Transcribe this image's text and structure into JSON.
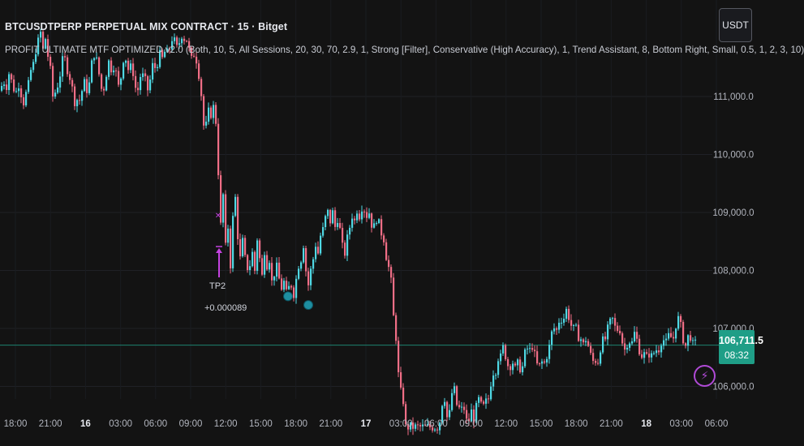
{
  "header": {
    "title": "BTCUSDTPERP PERPETUAL MIX CONTRACT · 15 · Bitget",
    "indicator": "PROFIT ULTIMATE MTF OPTIMIZED v2.0 (Both, 10, 5, All Sessions, 20, 30, 70, 2.9, 1, Strong [Filter], Conservative (High Accuracy), 1, Trend Assistant, 8, Bottom Right, Small, 0.5, 1, 2, 3, 10)"
  },
  "currency_button": "USDT",
  "price_badge": {
    "price": "106,711.5",
    "countdown": "08:32"
  },
  "annotation": {
    "label": "TP2",
    "value": "+0.000089"
  },
  "colors": {
    "bg": "#131313",
    "up": "#4fd8e4",
    "down": "#f06e86",
    "current": "#1f9e87",
    "signal": "#c443e0",
    "dot": "#1e8ea0"
  },
  "icons": {
    "alert": "lightning-icon"
  },
  "chart_data": {
    "type": "candlestick",
    "y_axis": {
      "ticks": [
        106000,
        107000,
        108000,
        109000,
        110000,
        111000
      ],
      "tick_labels": [
        "106,000.0",
        "107,000.0",
        "108,000.0",
        "109,000.0",
        "110,000.0",
        "111,000.0"
      ],
      "ylim": [
        105700,
        112400
      ]
    },
    "x_axis": {
      "tick_labels": [
        "18:00",
        "21:00",
        "16",
        "03:00",
        "06:00",
        "09:00",
        "12:00",
        "15:00",
        "18:00",
        "21:00",
        "17",
        "03:00",
        "06:00",
        "09:00",
        "12:00",
        "15:00",
        "18:00",
        "21:00",
        "18",
        "03:00",
        "06:00"
      ],
      "bold": [
        "16",
        "17",
        "18"
      ]
    },
    "current_price": 106711.5,
    "path": [
      [
        0,
        111100
      ],
      [
        3,
        111350
      ],
      [
        6,
        111050
      ],
      [
        9,
        111450
      ],
      [
        12,
        111300
      ],
      [
        15,
        111200
      ],
      [
        18,
        111000
      ],
      [
        21,
        111250
      ],
      [
        24,
        111150
      ],
      [
        27,
        110850
      ],
      [
        30,
        111000
      ],
      [
        34,
        111200
      ],
      [
        37,
        111450
      ],
      [
        40,
        111550
      ],
      [
        43,
        111800
      ],
      [
        46,
        111950
      ],
      [
        49,
        112100
      ],
      [
        52,
        111800
      ],
      [
        55,
        112000
      ],
      [
        58,
        111700
      ],
      [
        61,
        111450
      ],
      [
        64,
        111000
      ],
      [
        68,
        111100
      ],
      [
        71,
        111250
      ],
      [
        74,
        111450
      ],
      [
        77,
        111700
      ],
      [
        80,
        111600
      ],
      [
        83,
        111400
      ],
      [
        86,
        111300
      ],
      [
        89,
        111050
      ],
      [
        92,
        110850
      ],
      [
        95,
        111000
      ],
      [
        98,
        110900
      ],
      [
        101,
        111200
      ],
      [
        104,
        111250
      ],
      [
        107,
        111050
      ],
      [
        110,
        111300
      ],
      [
        113,
        111700
      ],
      [
        116,
        111750
      ],
      [
        119,
        111550
      ],
      [
        122,
        111300
      ],
      [
        125,
        111050
      ],
      [
        128,
        111200
      ],
      [
        131,
        111500
      ],
      [
        134,
        111650
      ],
      [
        137,
        111400
      ],
      [
        140,
        111600
      ],
      [
        143,
        111300
      ],
      [
        146,
        111100
      ],
      [
        149,
        111450
      ],
      [
        152,
        111750
      ],
      [
        155,
        111600
      ],
      [
        158,
        111400
      ],
      [
        161,
        111550
      ],
      [
        164,
        111350
      ],
      [
        167,
        111050
      ],
      [
        170,
        111150
      ],
      [
        173,
        111450
      ],
      [
        176,
        111300
      ],
      [
        179,
        111250
      ],
      [
        182,
        111050
      ],
      [
        185,
        111400
      ],
      [
        188,
        111600
      ],
      [
        191,
        111450
      ],
      [
        194,
        111650
      ],
      [
        197,
        111750
      ],
      [
        200,
        111600
      ],
      [
        203,
        111850
      ],
      [
        206,
        111700
      ],
      [
        209,
        111900
      ],
      [
        212,
        112050
      ],
      [
        215,
        111900
      ],
      [
        218,
        111800
      ],
      [
        221,
        112000
      ],
      [
        224,
        112100
      ],
      [
        227,
        111950
      ],
      [
        230,
        112000
      ],
      [
        233,
        111700
      ],
      [
        236,
        111600
      ],
      [
        239,
        111800
      ],
      [
        242,
        111550
      ],
      [
        245,
        111300
      ],
      [
        248,
        110900
      ],
      [
        251,
        110300
      ],
      [
        254,
        110600
      ],
      [
        257,
        110800
      ],
      [
        260,
        110650
      ],
      [
        263,
        110900
      ],
      [
        266,
        110400
      ],
      [
        268,
        109700
      ],
      [
        270,
        109000
      ],
      [
        272,
        108550
      ],
      [
        274,
        109300
      ],
      [
        277,
        108400
      ],
      [
        280,
        108750
      ],
      [
        283,
        108100
      ],
      [
        286,
        108900
      ],
      [
        289,
        109250
      ],
      [
        292,
        108600
      ],
      [
        295,
        108200
      ],
      [
        298,
        108500
      ],
      [
        301,
        108200
      ],
      [
        304,
        108050
      ],
      [
        307,
        108100
      ],
      [
        310,
        108300
      ],
      [
        313,
        108000
      ],
      [
        316,
        108550
      ],
      [
        319,
        108200
      ],
      [
        322,
        107900
      ],
      [
        325,
        108350
      ],
      [
        328,
        108100
      ],
      [
        331,
        108200
      ],
      [
        334,
        107800
      ],
      [
        337,
        107950
      ],
      [
        340,
        108050
      ],
      [
        343,
        107850
      ],
      [
        346,
        107700
      ],
      [
        349,
        107800
      ],
      [
        352,
        107600
      ],
      [
        355,
        107700
      ],
      [
        358,
        107750
      ],
      [
        361,
        107600
      ],
      [
        364,
        107850
      ],
      [
        367,
        108100
      ],
      [
        370,
        108200
      ],
      [
        373,
        108450
      ],
      [
        376,
        108000
      ],
      [
        379,
        107750
      ],
      [
        382,
        108000
      ],
      [
        385,
        108200
      ],
      [
        388,
        108450
      ],
      [
        391,
        108300
      ],
      [
        394,
        108600
      ],
      [
        397,
        108700
      ],
      [
        400,
        108900
      ],
      [
        403,
        109000
      ],
      [
        406,
        108850
      ],
      [
        409,
        109000
      ],
      [
        412,
        108750
      ],
      [
        415,
        108900
      ],
      [
        418,
        108700
      ],
      [
        421,
        108400
      ],
      [
        424,
        108300
      ],
      [
        427,
        108550
      ],
      [
        430,
        108750
      ],
      [
        433,
        108950
      ],
      [
        436,
        108850
      ],
      [
        439,
        109050
      ],
      [
        442,
        108950
      ],
      [
        445,
        109100
      ],
      [
        448,
        109050
      ],
      [
        451,
        108950
      ],
      [
        454,
        109000
      ],
      [
        457,
        108800
      ],
      [
        460,
        108750
      ],
      [
        463,
        108900
      ],
      [
        466,
        108800
      ],
      [
        469,
        108650
      ],
      [
        472,
        108550
      ],
      [
        475,
        108250
      ],
      [
        478,
        108050
      ],
      [
        481,
        107800
      ],
      [
        484,
        107200
      ],
      [
        487,
        106850
      ],
      [
        490,
        106200
      ],
      [
        493,
        105900
      ],
      [
        496,
        105750
      ],
      [
        499,
        105300
      ],
      [
        540,
        105300
      ],
      [
        543,
        105600
      ],
      [
        546,
        105950
      ],
      [
        549,
        105500
      ],
      [
        552,
        105400
      ],
      [
        555,
        105800
      ],
      [
        558,
        106050
      ],
      [
        561,
        105700
      ],
      [
        564,
        105650
      ],
      [
        567,
        105550
      ],
      [
        570,
        105700
      ],
      [
        573,
        105450
      ],
      [
        576,
        105300
      ],
      [
        579,
        105650
      ],
      [
        582,
        105400
      ],
      [
        585,
        105550
      ],
      [
        588,
        105800
      ],
      [
        591,
        105700
      ],
      [
        594,
        105600
      ],
      [
        597,
        105750
      ],
      [
        600,
        105700
      ],
      [
        603,
        105950
      ],
      [
        606,
        106300
      ],
      [
        609,
        106150
      ],
      [
        612,
        106550
      ],
      [
        615,
        106400
      ],
      [
        618,
        106700
      ],
      [
        621,
        106600
      ],
      [
        624,
        106400
      ],
      [
        627,
        106300
      ],
      [
        630,
        106500
      ],
      [
        633,
        106250
      ],
      [
        636,
        106400
      ],
      [
        639,
        106350
      ],
      [
        642,
        106250
      ],
      [
        645,
        106500
      ],
      [
        648,
        106700
      ],
      [
        651,
        106550
      ],
      [
        654,
        106750
      ],
      [
        657,
        106600
      ],
      [
        660,
        106400
      ],
      [
        663,
        106300
      ],
      [
        666,
        106450
      ],
      [
        669,
        106350
      ],
      [
        672,
        106500
      ],
      [
        675,
        106600
      ],
      [
        678,
        106850
      ],
      [
        681,
        107050
      ],
      [
        684,
        106900
      ],
      [
        687,
        107100
      ],
      [
        690,
        107200
      ],
      [
        693,
        107100
      ],
      [
        696,
        107350
      ],
      [
        699,
        107250
      ],
      [
        702,
        107100
      ],
      [
        705,
        106950
      ],
      [
        708,
        107050
      ],
      [
        711,
        106850
      ],
      [
        714,
        106900
      ],
      [
        717,
        106650
      ],
      [
        720,
        106850
      ],
      [
        723,
        106750
      ],
      [
        726,
        106600
      ],
      [
        729,
        106400
      ],
      [
        732,
        106500
      ],
      [
        735,
        106350
      ],
      [
        738,
        106600
      ],
      [
        741,
        106800
      ],
      [
        744,
        106750
      ],
      [
        747,
        106950
      ],
      [
        750,
        107050
      ],
      [
        753,
        107200
      ],
      [
        756,
        107050
      ],
      [
        759,
        106950
      ],
      [
        762,
        107050
      ],
      [
        765,
        106850
      ],
      [
        768,
        106600
      ],
      [
        771,
        106700
      ],
      [
        774,
        106850
      ],
      [
        777,
        106650
      ],
      [
        780,
        106950
      ],
      [
        783,
        106850
      ],
      [
        786,
        106700
      ],
      [
        789,
        106500
      ],
      [
        792,
        106600
      ],
      [
        795,
        106450
      ],
      [
        798,
        106600
      ],
      [
        801,
        106500
      ],
      [
        804,
        106550
      ],
      [
        807,
        106650
      ],
      [
        810,
        106600
      ],
      [
        813,
        106750
      ],
      [
        816,
        106850
      ],
      [
        819,
        106700
      ],
      [
        822,
        106850
      ],
      [
        825,
        106900
      ],
      [
        828,
        106750
      ],
      [
        831,
        107000
      ],
      [
        834,
        107200
      ],
      [
        837,
        107100
      ],
      [
        840,
        106900
      ],
      [
        843,
        106650
      ],
      [
        846,
        106800
      ],
      [
        849,
        106950
      ],
      [
        852,
        106700
      ],
      [
        855,
        106750
      ],
      [
        858,
        106711
      ]
    ],
    "signals": [
      {
        "type": "arrow-up",
        "x": 270,
        "price": 108300
      },
      {
        "type": "x-mark",
        "x": 269,
        "price": 108900
      },
      {
        "type": "circle",
        "x": 355,
        "price": 107750
      },
      {
        "type": "circle",
        "x": 380,
        "price": 107600
      }
    ]
  }
}
